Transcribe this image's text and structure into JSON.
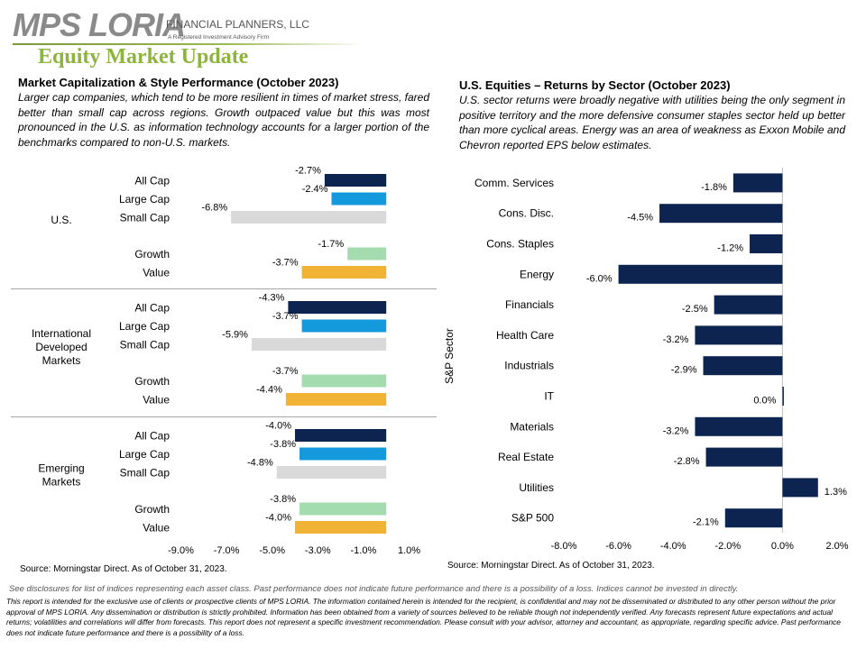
{
  "logo": {
    "main": "MPS LORIA",
    "sub": "FINANCIAL PLANNERS, LLC",
    "tagline": "A Registered Investment Advisory Firm"
  },
  "page_title": "Equity Market Update",
  "left": {
    "heading": "Market Capitalization & Style Performance (October 2023)",
    "description": "Larger cap companies, which tend to be more resilient in times of market stress, fared better than small cap across regions. Growth outpaced value but this was most pronounced in the U.S. as information technology accounts for a larger portion of the benchmarks compared to non-U.S. markets.",
    "source": "Source: Morningstar Direct. As of October 31, 2023."
  },
  "right": {
    "heading": "U.S. Equities – Returns by Sector (October 2023)",
    "description": "U.S. sector returns were broadly negative with utilities being the only segment in positive territory and the more defensive consumer staples sector held up better than more cyclical areas. Energy was an area of weakness as Exxon Mobile and Chevron reported EPS below estimates.",
    "source": "Source: Morningstar Direct. As of October 31, 2023."
  },
  "disclosure": "See disclosures for list of indices representing each asset class. Past performance does not indicate future performance and there is a possibility of a loss. Indices cannot be invested in directly.",
  "legal": "This report is intended for the exclusive use of clients or prospective clients of MPS LORIA. The information contained herein is intended for the recipient, is confidential and may not be disseminated or distributed to any other person without the prior approval of MPS LORIA. Any dissemination or distribution is strictly prohibited. Information has been obtained from a variety of sources believed to be reliable though not independently verified. Any forecasts represent future expectations and actual returns; volatilities and correlations will differ from forecasts. This report does not represent a specific investment recommendation. Please consult with your advisor, attorney and accountant, as appropriate, regarding specific advice. Past performance does not indicate future performance and there is a possibility of a loss.",
  "colors": {
    "all_cap": "#0d2350",
    "large_cap": "#1499dc",
    "small_cap": "#d9d9d9",
    "growth": "#a4dcb0",
    "value": "#f0b335",
    "sector_bar": "#0d2350",
    "title_green": "#8db43c"
  },
  "chart_data": [
    {
      "type": "bar",
      "orientation": "horizontal",
      "xlim": [
        -9.0,
        1.0
      ],
      "ticks": [
        "-9.0%",
        "-7.0%",
        "-5.0%",
        "-3.0%",
        "-1.0%",
        "1.0%"
      ],
      "tick_values": [
        -9,
        -7,
        -5,
        -3,
        -1,
        1
      ],
      "groups": [
        {
          "name": "U.S.",
          "items": [
            {
              "category": "All Cap",
              "value": -2.7,
              "label": "-2.7%",
              "kind": "all_cap"
            },
            {
              "category": "Large Cap",
              "value": -2.4,
              "label": "-2.4%",
              "kind": "large_cap"
            },
            {
              "category": "Small Cap",
              "value": -6.8,
              "label": "-6.8%",
              "kind": "small_cap"
            },
            {
              "category": "Growth",
              "value": -1.7,
              "label": "-1.7%",
              "kind": "growth"
            },
            {
              "category": "Value",
              "value": -3.7,
              "label": "-3.7%",
              "kind": "value"
            }
          ]
        },
        {
          "name": "International Developed Markets",
          "name_lines": [
            "International",
            "Developed",
            "Markets"
          ],
          "items": [
            {
              "category": "All Cap",
              "value": -4.3,
              "label": "-4.3%",
              "kind": "all_cap"
            },
            {
              "category": "Large Cap",
              "value": -3.7,
              "label": "-3.7%",
              "kind": "large_cap"
            },
            {
              "category": "Small Cap",
              "value": -5.9,
              "label": "-5.9%",
              "kind": "small_cap"
            },
            {
              "category": "Growth",
              "value": -3.7,
              "label": "-3.7%",
              "kind": "growth"
            },
            {
              "category": "Value",
              "value": -4.4,
              "label": "-4.4%",
              "kind": "value"
            }
          ]
        },
        {
          "name": "Emerging Markets",
          "name_lines": [
            "Emerging",
            "Markets"
          ],
          "items": [
            {
              "category": "All Cap",
              "value": -4.0,
              "label": "-4.0%",
              "kind": "all_cap"
            },
            {
              "category": "Large Cap",
              "value": -3.8,
              "label": "-3.8%",
              "kind": "large_cap"
            },
            {
              "category": "Small Cap",
              "value": -4.8,
              "label": "-4.8%",
              "kind": "small_cap"
            },
            {
              "category": "Growth",
              "value": -3.8,
              "label": "-3.8%",
              "kind": "growth"
            },
            {
              "category": "Value",
              "value": -4.0,
              "label": "-4.0%",
              "kind": "value"
            }
          ]
        }
      ]
    },
    {
      "type": "bar",
      "orientation": "horizontal",
      "ylabel": "S&P Sector",
      "xlim": [
        -8.0,
        2.0
      ],
      "ticks": [
        "-8.0%",
        "-6.0%",
        "-4.0%",
        "-2.0%",
        "0.0%",
        "2.0%"
      ],
      "tick_values": [
        -8,
        -6,
        -4,
        -2,
        0,
        2
      ],
      "categories": [
        "Comm. Services",
        "Cons. Disc.",
        "Cons. Staples",
        "Energy",
        "Financials",
        "Health Care",
        "Industrials",
        "IT",
        "Materials",
        "Real Estate",
        "Utilities",
        "S&P 500"
      ],
      "values": [
        -1.8,
        -4.5,
        -1.2,
        -6.0,
        -2.5,
        -3.2,
        -2.9,
        0.0,
        -3.2,
        -2.8,
        1.3,
        -2.1
      ],
      "labels": [
        "-1.8%",
        "-4.5%",
        "-1.2%",
        "-6.0%",
        "-2.5%",
        "-3.2%",
        "-2.9%",
        "0.0%",
        "-3.2%",
        "-2.8%",
        "1.3%",
        "-2.1%"
      ]
    }
  ]
}
